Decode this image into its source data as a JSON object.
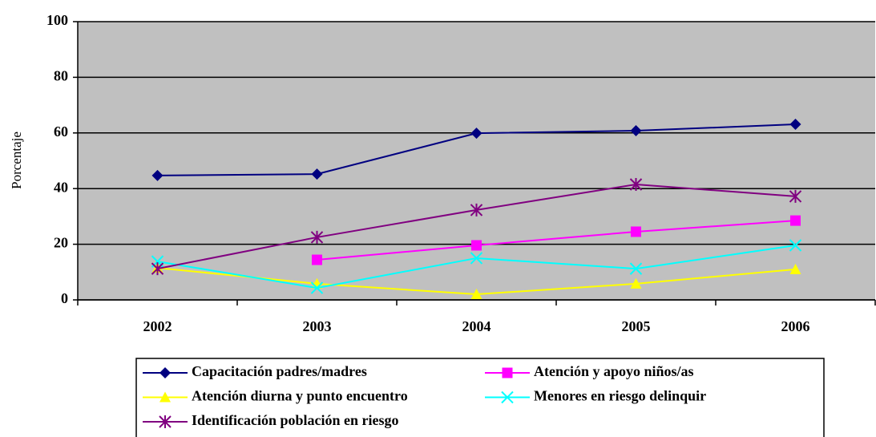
{
  "chart_data": {
    "type": "line",
    "y_label": "Porcentaje",
    "categories": [
      "2002",
      "2003",
      "2004",
      "2005",
      "2006"
    ],
    "ylim": [
      0,
      100
    ],
    "yticks": [
      0,
      20,
      40,
      60,
      80,
      100
    ],
    "grid": true,
    "legend": "bottom",
    "series": [
      {
        "name": "Capacitación padres/madres",
        "color": "#000080",
        "marker": "diamond",
        "values": [
          44.7,
          45.2,
          59.9,
          60.8,
          63.1
        ]
      },
      {
        "name": "Atención y apoyo niños/as",
        "color": "#ff00ff",
        "marker": "square",
        "values": [
          null,
          14.4,
          19.6,
          24.5,
          28.5
        ]
      },
      {
        "name": "Atención diurna y punto encuentro",
        "color": "#ffff00",
        "marker": "triangle",
        "values": [
          11.5,
          5.8,
          2.0,
          5.8,
          11.0
        ]
      },
      {
        "name": "Menores en riesgo delinquir",
        "color": "#00ffff",
        "marker": "x",
        "values": [
          13.8,
          4.3,
          15.0,
          11.2,
          19.6
        ]
      },
      {
        "name": "Identificación población en riesgo",
        "color": "#800080",
        "marker": "star",
        "values": [
          11.2,
          22.5,
          32.3,
          41.5,
          37.2
        ]
      }
    ]
  }
}
